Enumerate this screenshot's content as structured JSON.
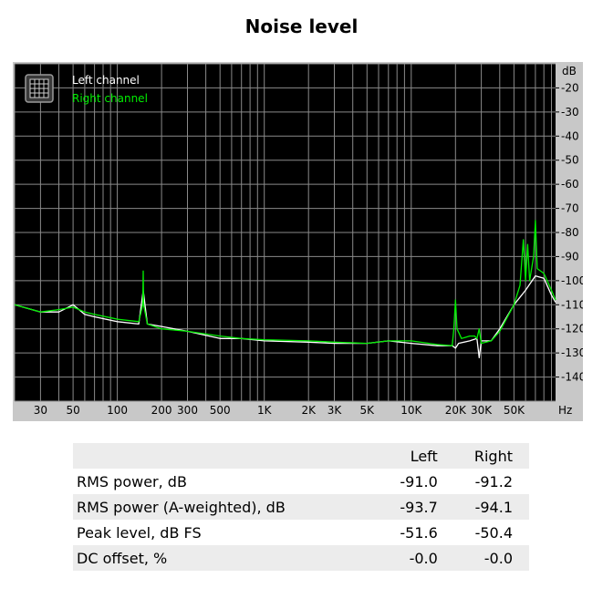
{
  "chart_data": {
    "type": "line",
    "title": "Noise level",
    "y_unit_label": "dB",
    "x_unit_label": "Hz",
    "x_scale": "log",
    "xlim": [
      20,
      96000
    ],
    "ylim": [
      -150,
      -10
    ],
    "grid": true,
    "legend_position": "top-left",
    "y_ticks": [
      {
        "value": -20,
        "label": "-20"
      },
      {
        "value": -30,
        "label": "-30"
      },
      {
        "value": -40,
        "label": "-40"
      },
      {
        "value": -50,
        "label": "-50"
      },
      {
        "value": -60,
        "label": "-60"
      },
      {
        "value": -70,
        "label": "-70"
      },
      {
        "value": -80,
        "label": "-80"
      },
      {
        "value": -90,
        "label": "-90"
      },
      {
        "value": -100,
        "label": "-100"
      },
      {
        "value": -110,
        "label": "-110"
      },
      {
        "value": -120,
        "label": "-120"
      },
      {
        "value": -130,
        "label": "-130"
      },
      {
        "value": -140,
        "label": "-140"
      }
    ],
    "x_ticks": [
      {
        "value": 30,
        "label": "30"
      },
      {
        "value": 50,
        "label": "50"
      },
      {
        "value": 100,
        "label": "100"
      },
      {
        "value": 200,
        "label": "200"
      },
      {
        "value": 300,
        "label": "300"
      },
      {
        "value": 500,
        "label": "500"
      },
      {
        "value": 1000,
        "label": "1K"
      },
      {
        "value": 2000,
        "label": "2K"
      },
      {
        "value": 3000,
        "label": "3K"
      },
      {
        "value": 5000,
        "label": "5K"
      },
      {
        "value": 10000,
        "label": "10K"
      },
      {
        "value": 20000,
        "label": "20K"
      },
      {
        "value": 30000,
        "label": "30K"
      },
      {
        "value": 50000,
        "label": "50K"
      }
    ],
    "series": [
      {
        "name": "Left channel",
        "color": "#ffffff",
        "x": [
          20,
          30,
          40,
          50,
          60,
          70,
          100,
          140,
          150,
          160,
          200,
          300,
          500,
          700,
          1000,
          2000,
          3000,
          5000,
          7000,
          10000,
          15000,
          19000,
          20000,
          21000,
          25000,
          28000,
          29000,
          30000,
          35000,
          40000,
          50000,
          60000,
          70000,
          80000,
          90000,
          96000
        ],
        "y": [
          -110,
          -113,
          -113,
          -110,
          -114,
          -115,
          -117,
          -118,
          -104,
          -118,
          -119,
          -121,
          -124,
          -124,
          -125,
          -125.5,
          -126,
          -126,
          -125,
          -126,
          -127,
          -127,
          -128,
          -126,
          -125,
          -124,
          -132,
          -125,
          -125,
          -120,
          -110,
          -104,
          -98,
          -99,
          -106,
          -109
        ]
      },
      {
        "name": "Right channel",
        "color": "#00ee00",
        "x": [
          20,
          30,
          40,
          50,
          60,
          70,
          100,
          140,
          149,
          150,
          151,
          160,
          200,
          300,
          500,
          700,
          1000,
          2000,
          3000,
          5000,
          7000,
          10000,
          15000,
          19000,
          19500,
          20000,
          20500,
          22000,
          25000,
          27000,
          28000,
          29000,
          30000,
          35000,
          40000,
          50000,
          55000,
          58000,
          60000,
          62000,
          64000,
          68000,
          70000,
          72000,
          80000,
          90000,
          96000
        ],
        "y": [
          -110,
          -113,
          -112,
          -111,
          -113,
          -114,
          -116,
          -117,
          -110,
          -96,
          -110,
          -118,
          -120,
          -121,
          -123,
          -124,
          -124.5,
          -125,
          -125.5,
          -126,
          -125,
          -125,
          -126.5,
          -127,
          -120,
          -108,
          -120,
          -124,
          -123,
          -123,
          -124,
          -120,
          -126,
          -125,
          -121,
          -110,
          -102,
          -83,
          -100,
          -85,
          -100,
          -90,
          -75,
          -95,
          -97,
          -104,
          -108
        ]
      }
    ]
  },
  "stats_table": {
    "headers": [
      "",
      "Left",
      "Right"
    ],
    "rows": [
      {
        "label": "RMS power, dB",
        "left": "-91.0",
        "right": "-91.2"
      },
      {
        "label": "RMS power (A-weighted), dB",
        "left": "-93.7",
        "right": "-94.1"
      },
      {
        "label": "Peak level, dB FS",
        "left": "-51.6",
        "right": "-50.4"
      },
      {
        "label": "DC offset, %",
        "left": "-0.0",
        "right": "-0.0"
      }
    ]
  }
}
